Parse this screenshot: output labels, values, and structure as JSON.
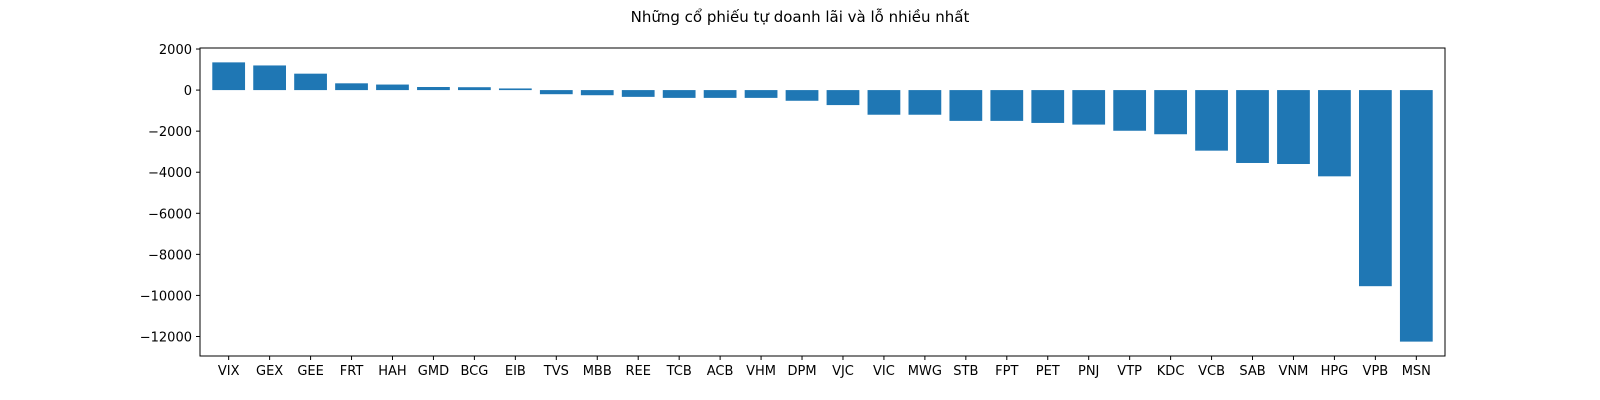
{
  "chart_data": {
    "type": "bar",
    "title": "Những cổ phiếu tự doanh lãi và lỗ nhiều nhất",
    "xlabel": "",
    "ylabel": "",
    "categories": [
      "VIX",
      "GEX",
      "GEE",
      "FRT",
      "HAH",
      "GMD",
      "BCG",
      "EIB",
      "TVS",
      "MBB",
      "REE",
      "TCB",
      "ACB",
      "VHM",
      "DPM",
      "VJC",
      "VIC",
      "MWG",
      "STB",
      "FPT",
      "PET",
      "PNJ",
      "VTP",
      "KDC",
      "VCB",
      "SAB",
      "VNM",
      "HPG",
      "VPB",
      "MSN"
    ],
    "values": [
      1350,
      1200,
      800,
      330,
      270,
      150,
      140,
      80,
      -200,
      -250,
      -330,
      -380,
      -380,
      -380,
      -520,
      -730,
      -1200,
      -1200,
      -1500,
      -1500,
      -1600,
      -1680,
      -1980,
      -2150,
      -2950,
      -3550,
      -3600,
      -4200,
      -9550,
      -12250
    ],
    "yticks": [
      2000,
      0,
      -2000,
      -4000,
      -6000,
      -8000,
      -10000,
      -12000
    ],
    "ylim": [
      -12950,
      2050
    ],
    "bar_color": "#1f77b4",
    "grid": false,
    "legend": false
  }
}
